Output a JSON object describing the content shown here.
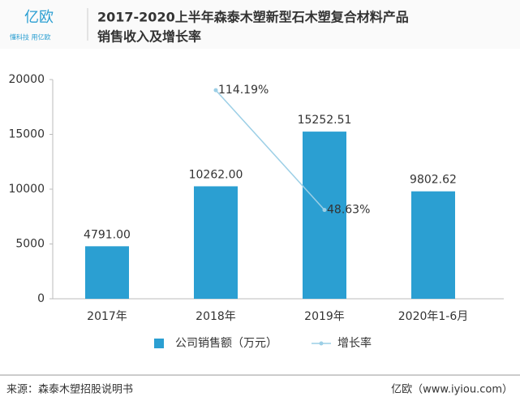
{
  "header": {
    "logo": "亿欧",
    "slogan": "懂科技 用亿欧"
  },
  "chart_data": {
    "type": "bar",
    "title": [
      "2017-2020上半年森泰木塑新型石木塑复合材料产品",
      "销售收入及增长率"
    ],
    "categories": [
      "2017年",
      "2018年",
      "2019年",
      "2020年1-6月"
    ],
    "series": [
      {
        "name": "公司销售额（万元）",
        "type": "bar",
        "color": "#2b9fd2",
        "values": [
          4791,
          10262,
          15252.51,
          9802.62
        ],
        "value_labels": [
          "4791.00",
          "10262.00",
          "15252.51",
          "9802.62"
        ]
      },
      {
        "name": "增长率",
        "type": "line",
        "axis": "y2",
        "color": "#9ccfe6",
        "values": [
          null,
          114.19,
          48.63,
          null
        ],
        "value_labels": [
          null,
          "114.19%",
          "48.63%",
          null
        ]
      }
    ],
    "ylim": [
      0,
      20000
    ],
    "yticks": [
      0,
      5000,
      10000,
      15000,
      20000
    ],
    "y2lim": [
      0,
      120
    ]
  },
  "footer": {
    "source": "来源：森泰木塑招股说明书",
    "credit": "亿欧（www.iyiou.com）"
  }
}
